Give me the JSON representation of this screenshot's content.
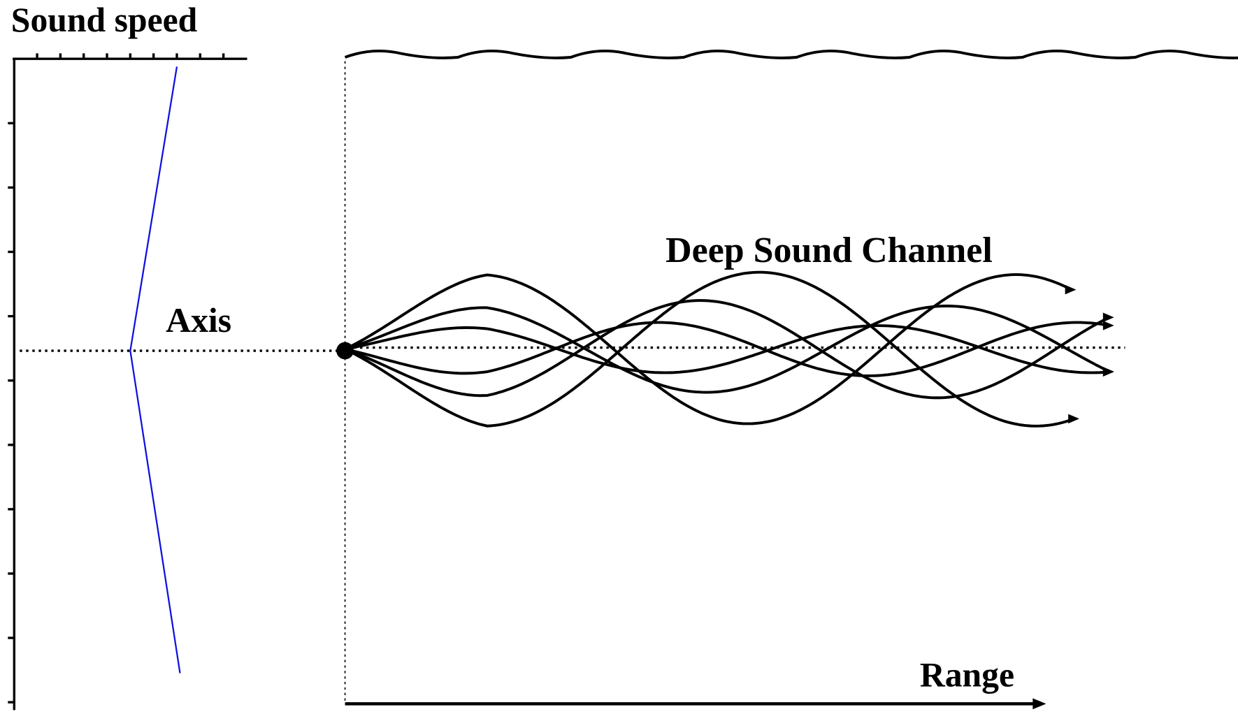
{
  "labels": {
    "sound_speed": "Sound speed",
    "axis": "Axis",
    "channel": "Deep Sound Channel",
    "range": "Range"
  }
}
